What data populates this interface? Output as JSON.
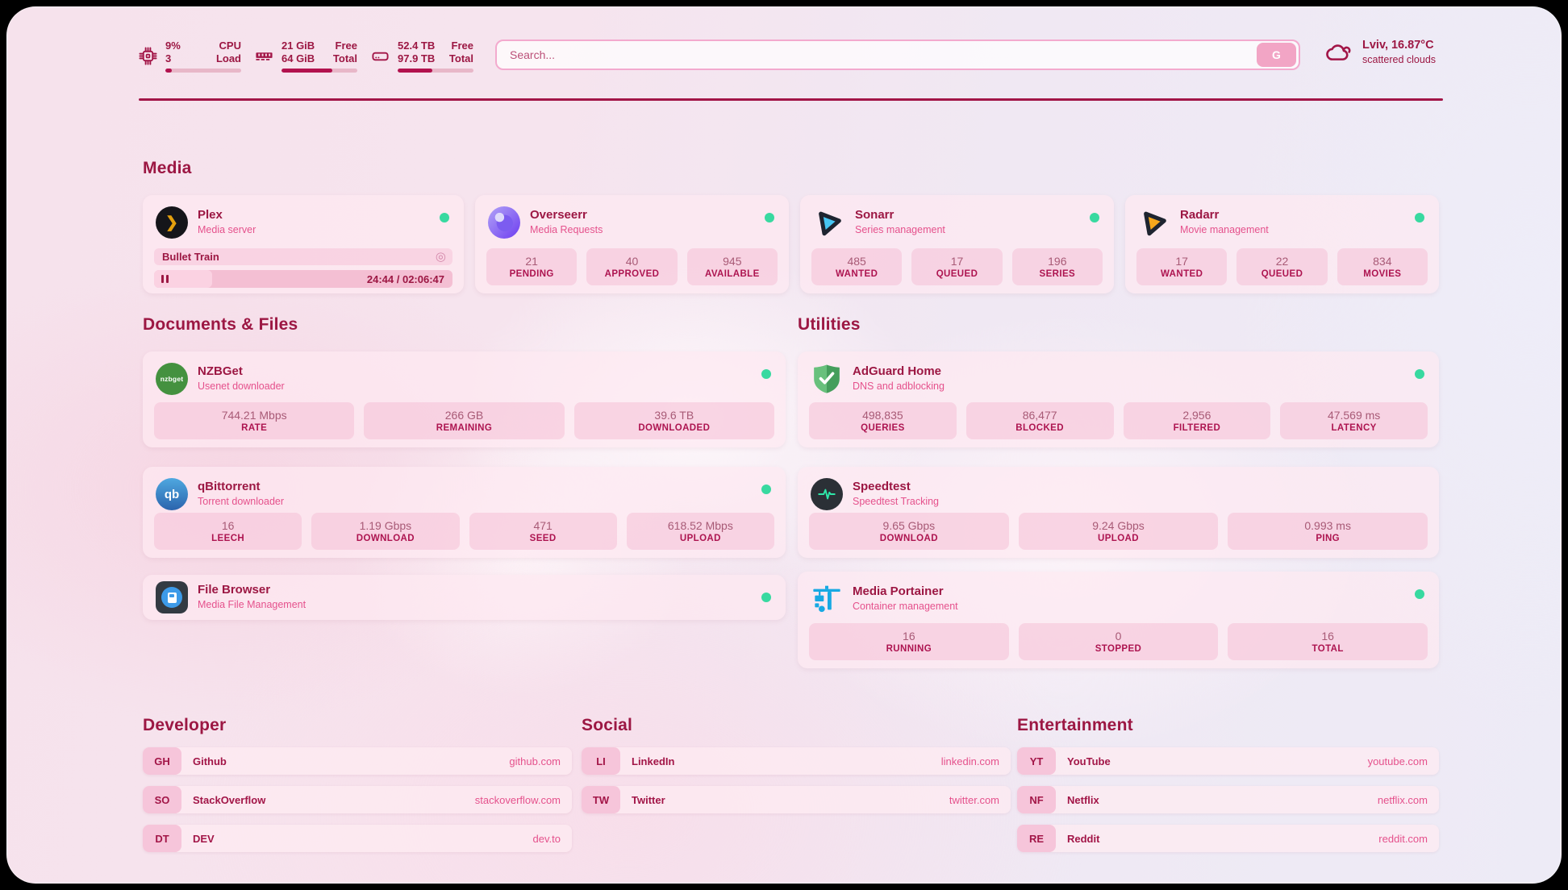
{
  "colors": {
    "accent": "#9c1743",
    "subtitle_pink": "#e5518c",
    "status_online": "#38d9a0",
    "plex_gold": "#e5a00d",
    "sonarr_blue": "#46c6f3",
    "radarr_amber": "#f6a71b",
    "nzbget_green": "#44913f",
    "qbittorrent_blue": "#2b64ad",
    "adguard_green": "#4a9e5f",
    "speedtest_pulse_green": "#2ee6a8",
    "portainer_blue": "#18a9e3"
  },
  "header": {
    "system_stats": [
      {
        "icon": "cpu-icon",
        "value_top": "9%",
        "value_bottom": "3",
        "label_top": "CPU",
        "label_bottom": "Load",
        "progress_percent": 9
      },
      {
        "icon": "memory-icon",
        "value_top": "21 GiB",
        "value_bottom": "64 GiB",
        "label_top": "Free",
        "label_bottom": "Total",
        "progress_percent": 67
      },
      {
        "icon": "disk-icon",
        "value_top": "52.4 TB",
        "value_bottom": "97.9 TB",
        "label_top": "Free",
        "label_bottom": "Total",
        "progress_percent": 46
      }
    ],
    "search": {
      "placeholder": "Search...",
      "button_label": "G"
    },
    "weather": {
      "icon": "cloud-icon",
      "location_temperature": "Lviv, 16.87°C",
      "condition": "scattered clouds"
    }
  },
  "media": {
    "section_title": "Media",
    "plex": {
      "name": "Plex",
      "subtitle": "Media server",
      "status": "online",
      "now_playing": {
        "title": "Bullet Train",
        "time": "24:44 / 02:06:47",
        "progress_percent": 19.5
      }
    },
    "overseerr": {
      "name": "Overseerr",
      "subtitle": "Media Requests",
      "status": "online",
      "stats": [
        {
          "value": "21",
          "label": "PENDING"
        },
        {
          "value": "40",
          "label": "APPROVED"
        },
        {
          "value": "945",
          "label": "AVAILABLE"
        }
      ]
    },
    "sonarr": {
      "name": "Sonarr",
      "subtitle": "Series management",
      "status": "online",
      "stats": [
        {
          "value": "485",
          "label": "WANTED"
        },
        {
          "value": "17",
          "label": "QUEUED"
        },
        {
          "value": "196",
          "label": "SERIES"
        }
      ]
    },
    "radarr": {
      "name": "Radarr",
      "subtitle": "Movie management",
      "status": "online",
      "stats": [
        {
          "value": "17",
          "label": "WANTED"
        },
        {
          "value": "22",
          "label": "QUEUED"
        },
        {
          "value": "834",
          "label": "MOVIES"
        }
      ]
    }
  },
  "documents": {
    "section_title": "Documents & Files",
    "nzbget": {
      "name": "NZBGet",
      "subtitle": "Usenet downloader",
      "status": "online",
      "icon_text": "nzbget",
      "stats": [
        {
          "value": "744.21 Mbps",
          "label": "RATE"
        },
        {
          "value": "266 GB",
          "label": "REMAINING"
        },
        {
          "value": "39.6 TB",
          "label": "DOWNLOADED"
        }
      ]
    },
    "qbittorrent": {
      "name": "qBittorrent",
      "subtitle": "Torrent downloader",
      "status": "online",
      "icon_text": "qb",
      "stats": [
        {
          "value": "16",
          "label": "LEECH"
        },
        {
          "value": "1.19 Gbps",
          "label": "DOWNLOAD"
        },
        {
          "value": "471",
          "label": "SEED"
        },
        {
          "value": "618.52 Mbps",
          "label": "UPLOAD"
        }
      ]
    },
    "filebrowser": {
      "name": "File Browser",
      "subtitle": "Media File Management",
      "status": "online"
    }
  },
  "utilities": {
    "section_title": "Utilities",
    "adguard": {
      "name": "AdGuard Home",
      "subtitle": "DNS and adblocking",
      "status": "online",
      "stats": [
        {
          "value": "498,835",
          "label": "QUERIES"
        },
        {
          "value": "86,477",
          "label": "BLOCKED"
        },
        {
          "value": "2,956",
          "label": "FILTERED"
        },
        {
          "value": "47.569 ms",
          "label": "LATENCY"
        }
      ]
    },
    "speedtest": {
      "name": "Speedtest",
      "subtitle": "Speedtest Tracking",
      "stats": [
        {
          "value": "9.65 Gbps",
          "label": "DOWNLOAD"
        },
        {
          "value": "9.24 Gbps",
          "label": "UPLOAD"
        },
        {
          "value": "0.993 ms",
          "label": "PING"
        }
      ]
    },
    "portainer": {
      "name": "Media Portainer",
      "subtitle": "Container management",
      "status": "online",
      "stats": [
        {
          "value": "16",
          "label": "RUNNING"
        },
        {
          "value": "0",
          "label": "STOPPED"
        },
        {
          "value": "16",
          "label": "TOTAL"
        }
      ]
    }
  },
  "bookmarks": {
    "developer": {
      "section_title": "Developer",
      "links": [
        {
          "tag": "GH",
          "name": "Github",
          "domain": "github.com"
        },
        {
          "tag": "SO",
          "name": "StackOverflow",
          "domain": "stackoverflow.com"
        },
        {
          "tag": "DT",
          "name": "DEV",
          "domain": "dev.to"
        }
      ]
    },
    "social": {
      "section_title": "Social",
      "links": [
        {
          "tag": "LI",
          "name": "LinkedIn",
          "domain": "linkedin.com"
        },
        {
          "tag": "TW",
          "name": "Twitter",
          "domain": "twitter.com"
        }
      ]
    },
    "entertainment": {
      "section_title": "Entertainment",
      "links": [
        {
          "tag": "YT",
          "name": "YouTube",
          "domain": "youtube.com"
        },
        {
          "tag": "NF",
          "name": "Netflix",
          "domain": "netflix.com"
        },
        {
          "tag": "RE",
          "name": "Reddit",
          "domain": "reddit.com"
        }
      ]
    }
  }
}
